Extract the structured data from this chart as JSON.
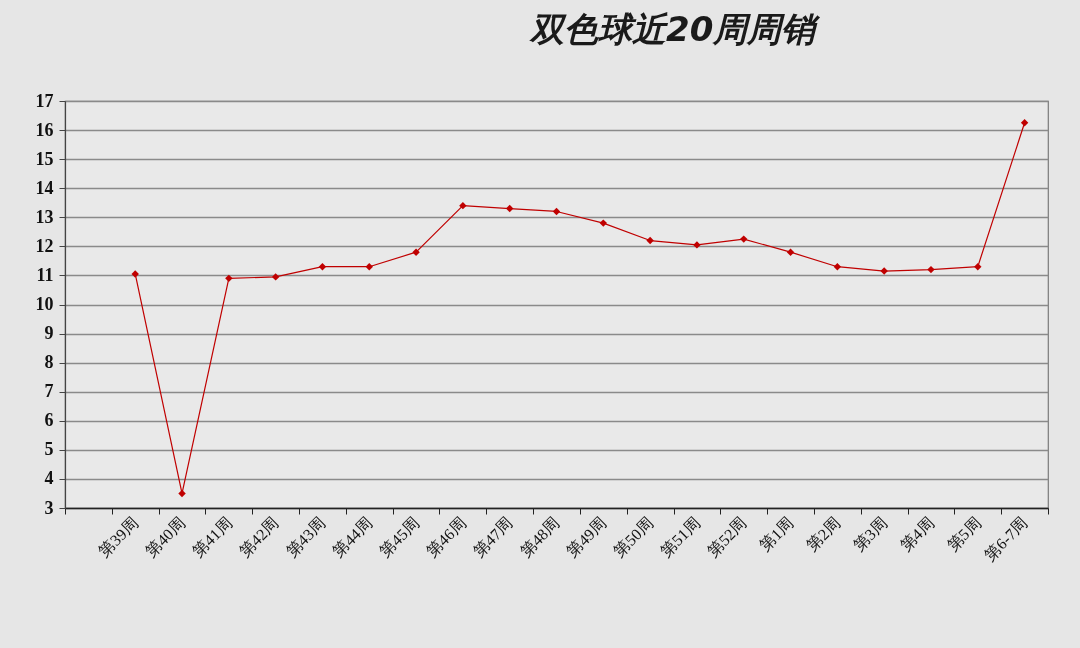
{
  "chart_data": {
    "type": "line",
    "title": "双色球近20周周销",
    "categories": [
      null,
      "第39周",
      "第40周",
      "第41周",
      "第42周",
      "第43周",
      "第44周",
      "第45周",
      "第46周",
      "第47周",
      "第48周",
      "第49周",
      "第50周",
      "第51周",
      "第52周",
      "第1周",
      "第2周",
      "第3周",
      "第4周",
      "第5周",
      "第6-7周"
    ],
    "series": [
      {
        "color": "#c00000",
        "values": [
          null,
          11.05,
          3.5,
          10.9,
          10.95,
          11.3,
          11.3,
          11.8,
          13.4,
          13.3,
          13.2,
          12.8,
          12.2,
          12.05,
          12.25,
          11.8,
          11.3,
          11.15,
          11.2,
          11.3,
          16.25
        ]
      }
    ],
    "ylim": [
      3,
      17
    ],
    "yticks": [
      3,
      4,
      5,
      6,
      7,
      8,
      9,
      10,
      11,
      12,
      13,
      14,
      15,
      16,
      17
    ],
    "grid": "y",
    "marker": "diamond",
    "line_style": "solid"
  }
}
